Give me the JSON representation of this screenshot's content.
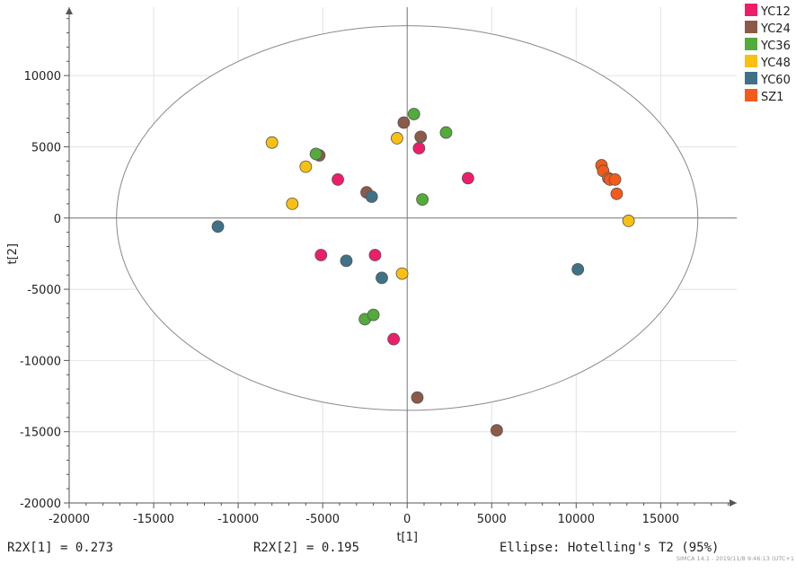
{
  "chart_data": {
    "type": "scatter",
    "title": "",
    "xlabel": "t[1]",
    "ylabel": "t[2]",
    "xlim": [
      -20000,
      19500
    ],
    "ylim": [
      -20000,
      14800
    ],
    "xticks": [
      -20000,
      -15000,
      -10000,
      -5000,
      0,
      5000,
      10000,
      15000
    ],
    "yticks": [
      -20000,
      -15000,
      -10000,
      -5000,
      0,
      5000,
      10000
    ],
    "grid": true,
    "legend_position": "top-right",
    "ellipse": {
      "center": [
        0,
        0
      ],
      "semi_x": 17200,
      "semi_y": 13500
    },
    "series": [
      {
        "name": "YC12",
        "color": "#ee1d6b",
        "points": [
          [
            -4100,
            2700
          ],
          [
            700,
            4900
          ],
          [
            3600,
            2800
          ],
          [
            -5100,
            -2600
          ],
          [
            -1900,
            -2600
          ],
          [
            -800,
            -8500
          ]
        ]
      },
      {
        "name": "YC24",
        "color": "#8b5a48",
        "points": [
          [
            -5200,
            4400
          ],
          [
            -200,
            6700
          ],
          [
            800,
            5700
          ],
          [
            -2400,
            1800
          ],
          [
            600,
            -12600
          ],
          [
            5300,
            -14900
          ]
        ]
      },
      {
        "name": "YC36",
        "color": "#52ab3a",
        "points": [
          [
            -5400,
            4500
          ],
          [
            400,
            7300
          ],
          [
            2300,
            6000
          ],
          [
            900,
            1300
          ],
          [
            -2500,
            -7100
          ],
          [
            -2000,
            -6800
          ]
        ]
      },
      {
        "name": "YC48",
        "color": "#f9c012",
        "points": [
          [
            -8000,
            5300
          ],
          [
            -6000,
            3600
          ],
          [
            -6800,
            1000
          ],
          [
            -600,
            5600
          ],
          [
            -300,
            -3900
          ],
          [
            13100,
            -200
          ]
        ]
      },
      {
        "name": "YC60",
        "color": "#3f7187",
        "points": [
          [
            -11200,
            -600
          ],
          [
            -2100,
            1500
          ],
          [
            -3600,
            -3000
          ],
          [
            -1500,
            -4200
          ],
          [
            10100,
            -3600
          ]
        ]
      },
      {
        "name": "SZ1",
        "color": "#f55a1a",
        "points": [
          [
            11500,
            3700
          ],
          [
            11600,
            3300
          ],
          [
            11900,
            2800
          ],
          [
            12000,
            2700
          ],
          [
            12300,
            2700
          ],
          [
            12400,
            1700
          ]
        ]
      }
    ]
  },
  "footer": {
    "r2x1": "R2X[1] = 0.273",
    "r2x2": "R2X[2] = 0.195",
    "ellipse": "Ellipse: Hotelling's T2 (95%)",
    "credit": "SIMCA 14.1 - 2019/11/8 9:46:13 (UTC+1"
  }
}
